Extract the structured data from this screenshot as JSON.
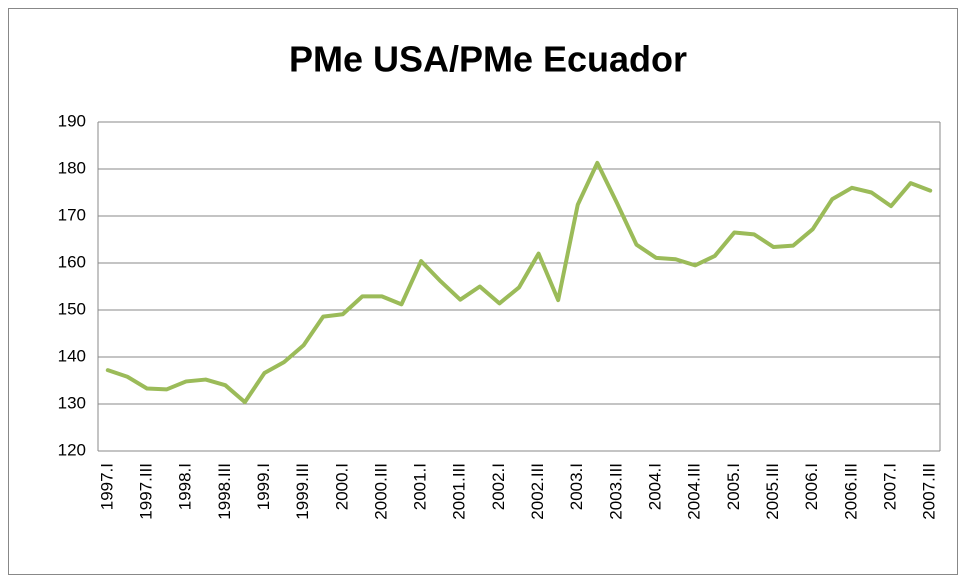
{
  "chart_data": {
    "type": "line",
    "title": "PMe USA/PMe Ecuador",
    "categories": [
      "1997.I",
      null,
      "1997.III",
      null,
      "1998.I",
      null,
      "1998.III",
      null,
      "1999.I",
      null,
      "1999.III",
      null,
      "2000.I",
      null,
      "2000.III",
      null,
      "2001.I",
      null,
      "2001.III",
      null,
      "2002.I",
      null,
      "2002.III",
      null,
      "2003.I",
      null,
      "2003.III",
      null,
      "2004.I",
      null,
      "2004.III",
      null,
      "2005.I",
      null,
      "2005.III",
      null,
      "2006.I",
      null,
      "2006.III",
      null,
      "2007.I",
      null,
      "2007.III"
    ],
    "series": [
      {
        "name": "PMe USA/PMe Ecuador",
        "color": "#9bbb59",
        "values": [
          137.2,
          135.8,
          133.3,
          133.1,
          134.8,
          135.2,
          134.0,
          130.4,
          136.6,
          138.9,
          142.5,
          148.6,
          149.1,
          152.9,
          152.9,
          151.2,
          160.4,
          156.1,
          152.2,
          155.0,
          151.4,
          154.8,
          162.0,
          152.1,
          172.4,
          181.3,
          172.8,
          163.9,
          161.1,
          160.8,
          159.5,
          161.5,
          166.5,
          166.1,
          163.4,
          163.7,
          167.2,
          173.6,
          176.0,
          175.0,
          172.1,
          177.0,
          175.4
        ]
      }
    ],
    "ylim": [
      120,
      190
    ],
    "yticks": [
      120,
      130,
      140,
      150,
      160,
      170,
      180,
      190
    ],
    "grid": true,
    "legend": false
  }
}
